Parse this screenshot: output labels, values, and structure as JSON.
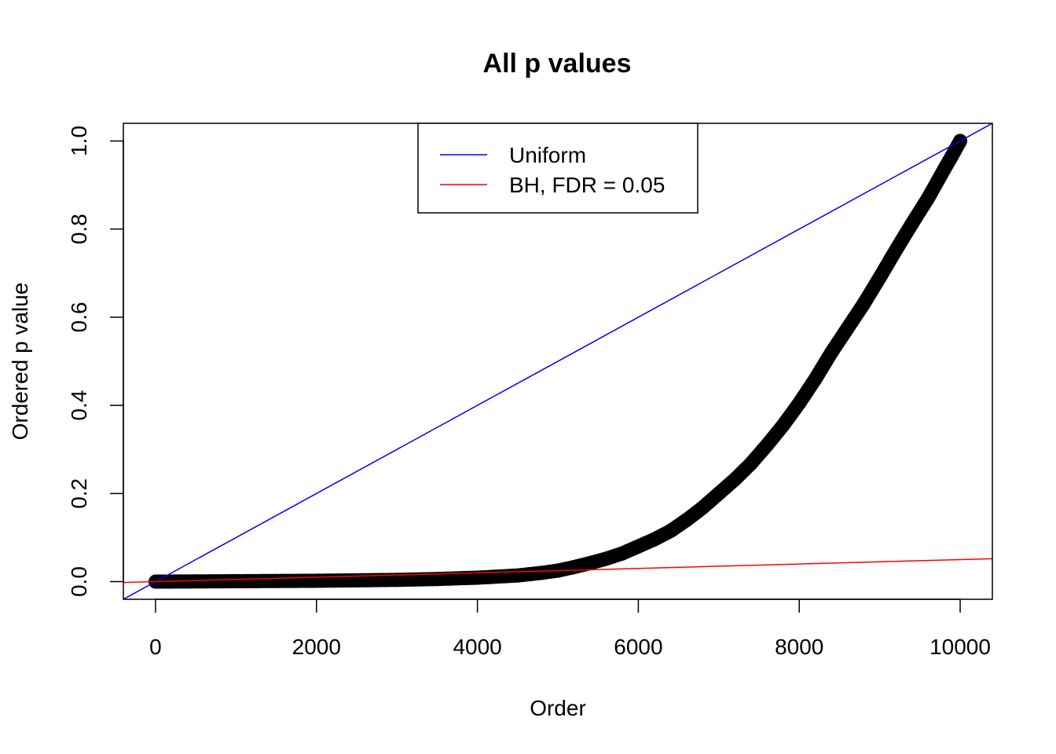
{
  "chart_data": {
    "type": "scatter",
    "title": "All p values",
    "xlabel": "Order",
    "ylabel": "Ordered p value",
    "xlim": [
      -400,
      10400
    ],
    "ylim": [
      -0.04,
      1.04
    ],
    "x_ticks": [
      0,
      2000,
      4000,
      6000,
      8000,
      10000
    ],
    "x_tick_labels": [
      "0",
      "2000",
      "4000",
      "6000",
      "8000",
      "10000"
    ],
    "y_ticks": [
      0.0,
      0.2,
      0.4,
      0.6,
      0.8,
      1.0
    ],
    "y_tick_labels": [
      "0.0",
      "0.2",
      "0.4",
      "0.6",
      "0.8",
      "1.0"
    ],
    "grid": false,
    "legend_position": "top-center",
    "series": [
      {
        "kind": "points",
        "color": "#000000",
        "x": [
          1,
          500,
          1000,
          1500,
          2000,
          2500,
          3000,
          3500,
          4000,
          4500,
          4800,
          5000,
          5200,
          5400,
          5600,
          5800,
          6000,
          6200,
          6400,
          6600,
          6800,
          7000,
          7200,
          7400,
          7600,
          7800,
          8000,
          8200,
          8400,
          8600,
          8800,
          9000,
          9200,
          9400,
          9600,
          9800,
          9900,
          10000
        ],
        "y": [
          0.0,
          0.0005,
          0.001,
          0.0015,
          0.002,
          0.003,
          0.004,
          0.006,
          0.009,
          0.014,
          0.02,
          0.025,
          0.033,
          0.042,
          0.052,
          0.064,
          0.08,
          0.096,
          0.115,
          0.14,
          0.168,
          0.2,
          0.232,
          0.268,
          0.31,
          0.355,
          0.405,
          0.46,
          0.52,
          0.575,
          0.63,
          0.69,
          0.752,
          0.812,
          0.87,
          0.935,
          0.967,
          1.0
        ]
      },
      {
        "kind": "abline",
        "name": "Uniform",
        "color": "#0000ff",
        "intercept": 0,
        "slope": 0.0001
      },
      {
        "kind": "abline",
        "name": "BH, FDR = 0.05",
        "color": "#ff0000",
        "intercept": 0,
        "slope": 5e-06
      }
    ]
  }
}
